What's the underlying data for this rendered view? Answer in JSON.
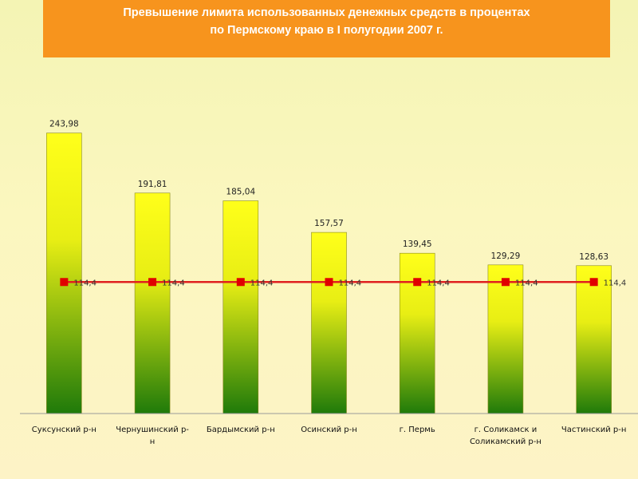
{
  "header": {
    "title_line1": "Превышение лимита использованных денежных средств в процентах",
    "title_line2": "по Пермскому  краю в I полугодии  2007 г."
  },
  "colors": {
    "title_bg": "#f7941d",
    "bar_top": "#ffff1a",
    "bar_bottom": "#1f7a0a",
    "limit_line": "#e02020",
    "limit_marker": "#e00000"
  },
  "chart_data": {
    "type": "bar",
    "categories": [
      [
        "Суксунский р-н"
      ],
      [
        "Чернушинский р-",
        "н"
      ],
      [
        "Бардымский р-н"
      ],
      [
        "Осинский р-н"
      ],
      [
        "г. Пермь"
      ],
      [
        "г. Соликамск и",
        "Соликамский р-н"
      ],
      [
        "Частинский р-н"
      ]
    ],
    "values": [
      243.98,
      191.81,
      185.04,
      157.57,
      139.45,
      129.29,
      128.63
    ],
    "value_labels": [
      "243,98",
      "191,81",
      "185,04",
      "157,57",
      "139,45",
      "129,29",
      "128,63"
    ],
    "line_series": {
      "values": [
        114.4,
        114.4,
        114.4,
        114.4,
        114.4,
        114.4,
        114.4
      ],
      "labels": [
        "114,4",
        "114,4",
        "114,4",
        "114,4",
        "114,4",
        "114,4",
        "114,4"
      ]
    },
    "ylim": [
      0,
      250
    ],
    "grid": false,
    "legend": "none"
  }
}
